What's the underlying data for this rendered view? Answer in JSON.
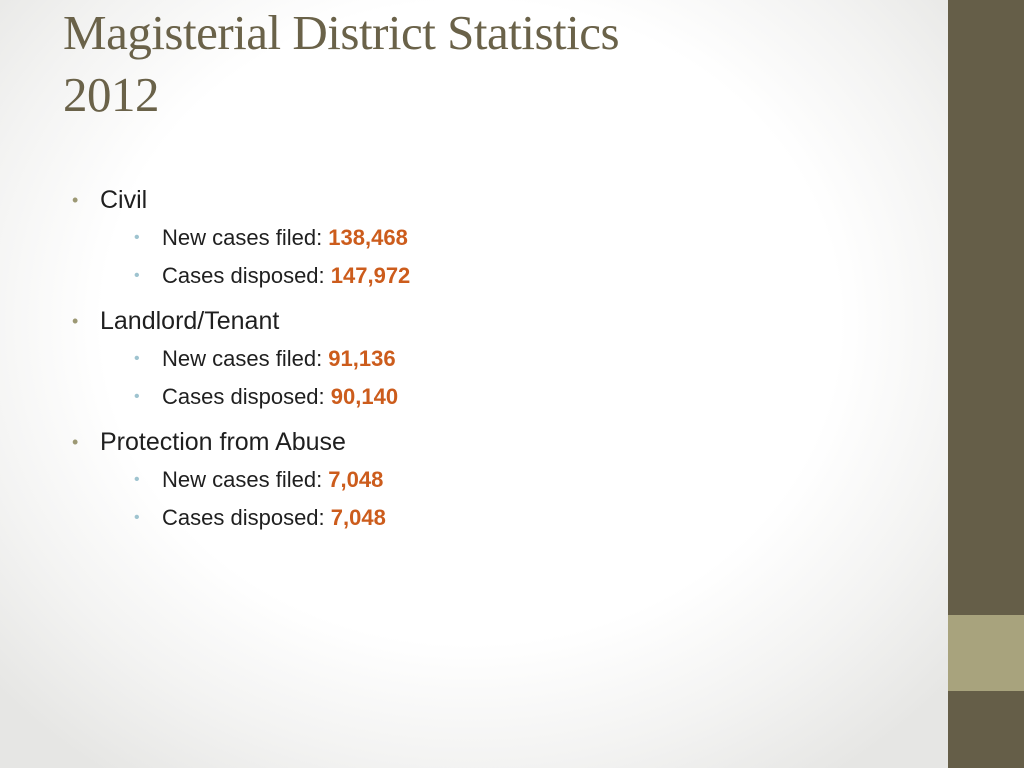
{
  "slide": {
    "title_line1": "Magisterial District Statistics",
    "title_line2": "2012",
    "bullet_glyph": "•",
    "colors": {
      "title": "#6a6249",
      "value": "#cc5c1c",
      "side_bar": "#655e48",
      "side_accent": "#a8a37d"
    },
    "sections": [
      {
        "label": "Civil",
        "items": [
          {
            "label": "New cases filed: ",
            "value": "138,468"
          },
          {
            "label": "Cases disposed: ",
            "value": "147,972"
          }
        ]
      },
      {
        "label": "Landlord/Tenant",
        "items": [
          {
            "label": "New cases filed: ",
            "value": "91,136"
          },
          {
            "label": "Cases disposed: ",
            "value": "90,140"
          }
        ]
      },
      {
        "label": "Protection from Abuse",
        "items": [
          {
            "label": "New cases filed: ",
            "value": "7,048"
          },
          {
            "label": "Cases disposed: ",
            "value": "7,048"
          }
        ]
      }
    ]
  }
}
